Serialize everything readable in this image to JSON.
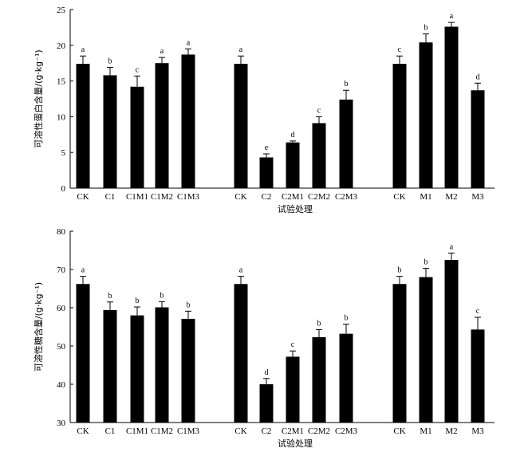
{
  "chart_data": [
    {
      "type": "bar",
      "title": "",
      "ylabel": "可溶性蛋白含量/(g·kg⁻¹)",
      "xlabel": "试验处理",
      "ylim": [
        0,
        25
      ],
      "yticks": [
        0,
        5,
        10,
        15,
        20,
        25
      ],
      "ytick_labels": [
        "0",
        "5",
        "10",
        "15",
        "20",
        "25"
      ],
      "grid": false,
      "groups": [
        {
          "categories": [
            "CK",
            "C1",
            "C1M1",
            "C1M2",
            "C1M3"
          ],
          "values": [
            17.4,
            15.8,
            14.2,
            17.5,
            18.7
          ],
          "errors": [
            1.1,
            1.1,
            1.5,
            0.8,
            0.8
          ],
          "letters": [
            "a",
            "b",
            "c",
            "a",
            "a"
          ]
        },
        {
          "categories": [
            "CK",
            "C2",
            "C2M1",
            "C2M2",
            "C2M3"
          ],
          "values": [
            17.4,
            4.3,
            6.4,
            9.1,
            12.4
          ],
          "errors": [
            1.1,
            0.5,
            0.2,
            0.9,
            1.3
          ],
          "letters": [
            "a",
            "e",
            "d",
            "c",
            "b"
          ]
        },
        {
          "categories": [
            "CK",
            "M1",
            "M2",
            "M3"
          ],
          "values": [
            17.4,
            20.4,
            22.6,
            13.7
          ],
          "errors": [
            1.1,
            1.2,
            0.6,
            1.0
          ],
          "letters": [
            "c",
            "b",
            "a",
            "d"
          ]
        }
      ]
    },
    {
      "type": "bar",
      "title": "",
      "ylabel": "可溶性糖含量/(g·kg⁻¹)",
      "xlabel": "试验处理",
      "ylim": [
        30,
        80
      ],
      "yticks": [
        30,
        40,
        50,
        60,
        70,
        80
      ],
      "ytick_labels": [
        "30",
        "40",
        "50",
        "60",
        "70",
        "80"
      ],
      "grid": false,
      "groups": [
        {
          "categories": [
            "CK",
            "C1",
            "C1M1",
            "C1M2",
            "C1M3"
          ],
          "values": [
            66.2,
            59.4,
            58.0,
            60.1,
            57.1
          ],
          "errors": [
            2.0,
            2.1,
            2.2,
            1.5,
            2.0
          ],
          "letters": [
            "a",
            "b",
            "b",
            "b",
            "b"
          ]
        },
        {
          "categories": [
            "CK",
            "C2",
            "C2M1",
            "C2M2",
            "C2M3"
          ],
          "values": [
            66.2,
            40.0,
            47.2,
            52.3,
            53.2
          ],
          "errors": [
            2.0,
            1.5,
            1.5,
            2.0,
            2.5
          ],
          "letters": [
            "a",
            "d",
            "c",
            "b",
            "b"
          ]
        },
        {
          "categories": [
            "CK",
            "M1",
            "M2",
            "M3"
          ],
          "values": [
            66.2,
            68.0,
            72.5,
            54.3
          ],
          "errors": [
            2.0,
            2.3,
            1.8,
            3.2
          ],
          "letters": [
            "b",
            "b",
            "a",
            "c"
          ]
        }
      ]
    }
  ]
}
